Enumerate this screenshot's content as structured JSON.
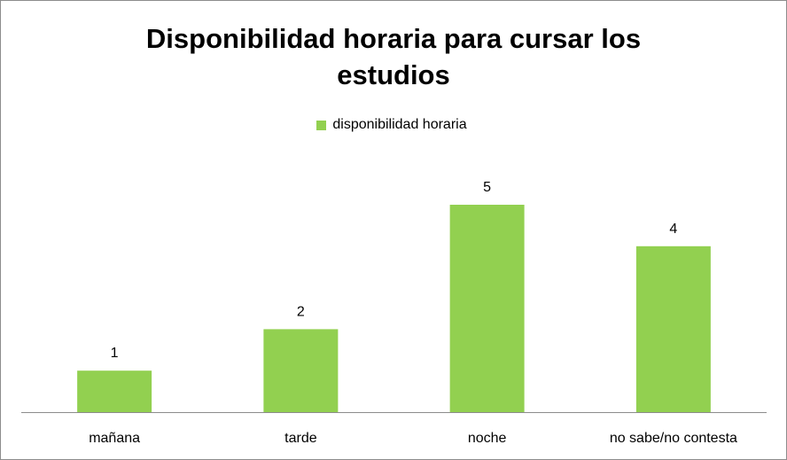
{
  "chart_data": {
    "type": "bar",
    "title_lines": [
      "Disponibilidad horaria para cursar los",
      "estudios"
    ],
    "categories": [
      "mañana",
      "tarde",
      "noche",
      "no sabe/no contesta"
    ],
    "series": [
      {
        "name": "disponibilidad horaria",
        "values": [
          1,
          2,
          5,
          4
        ],
        "color": "#92d050"
      }
    ],
    "xlabel": "",
    "ylabel": "",
    "ylim": [
      0,
      5
    ],
    "grid": false,
    "legend_position": "top",
    "data_labels": true
  }
}
